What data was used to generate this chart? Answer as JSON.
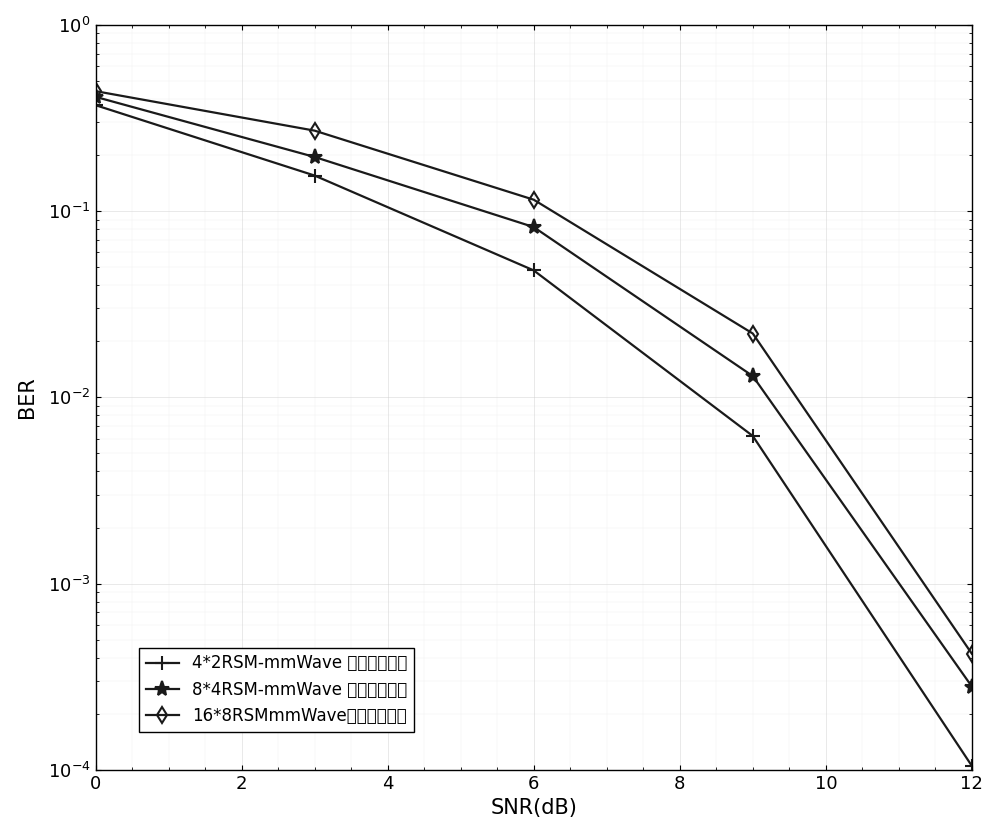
{
  "title": "",
  "xlabel": "SNR(dB)",
  "ylabel": "BER",
  "xlim": [
    0,
    12
  ],
  "ylim_log": [
    -4,
    0
  ],
  "xticks": [
    0,
    2,
    4,
    6,
    8,
    10,
    12
  ],
  "series": [
    {
      "label": "4*2RSM-mmWave 混合预编码后",
      "snr": [
        0,
        3,
        6,
        9,
        12
      ],
      "ber": [
        0.37,
        0.155,
        0.048,
        0.0062,
        0.000105
      ],
      "marker": "+",
      "markersize": 10,
      "color": "#1a1a1a",
      "linewidth": 1.6
    },
    {
      "label": "8*4RSM-mmWave 混合预编码后",
      "snr": [
        0,
        3,
        6,
        9,
        12
      ],
      "ber": [
        0.41,
        0.195,
        0.082,
        0.013,
        0.00028
      ],
      "marker": "*",
      "markersize": 11,
      "color": "#1a1a1a",
      "linewidth": 1.6
    },
    {
      "label": "16*8RSMmmWave混合预编码后",
      "snr": [
        0,
        3,
        6,
        9,
        12
      ],
      "ber": [
        0.44,
        0.27,
        0.115,
        0.022,
        0.00042
      ],
      "marker": "d",
      "markersize": 8,
      "color": "#1a1a1a",
      "linewidth": 1.6
    }
  ],
  "legend_loc": "lower left",
  "background_color": "#ffffff",
  "grid_color": "#cccccc",
  "grid_alpha": 0.5
}
